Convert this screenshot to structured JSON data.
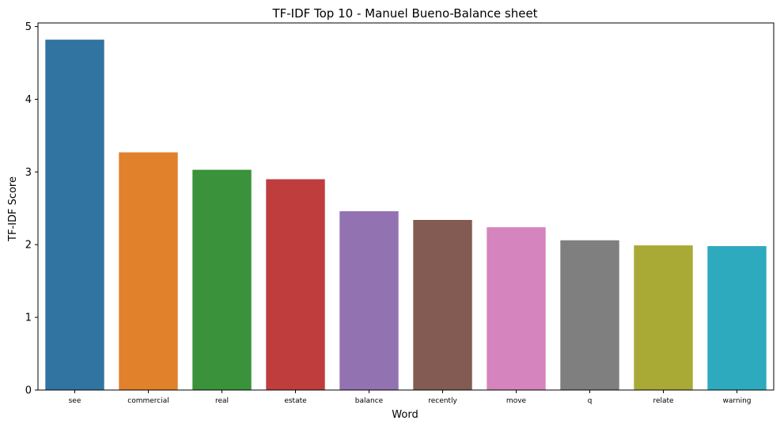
{
  "chart_data": {
    "type": "bar",
    "title": "TF-IDF Top 10 - Manuel Bueno-Balance sheet",
    "xlabel": "Word",
    "ylabel": "TF-IDF Score",
    "categories": [
      "see",
      "commercial",
      "real",
      "estate",
      "balance",
      "recently",
      "move",
      "q",
      "relate",
      "warning"
    ],
    "values": [
      4.82,
      3.27,
      3.03,
      2.9,
      2.46,
      2.34,
      2.24,
      2.06,
      1.99,
      1.98
    ],
    "colors": [
      "#3274a1",
      "#e1812c",
      "#3a923a",
      "#c03d3e",
      "#9372b2",
      "#845b53",
      "#d684bd",
      "#7f7f7f",
      "#a9aa35",
      "#2eaabf"
    ],
    "ylim": [
      0,
      5.05
    ],
    "yticks": [
      0,
      1,
      2,
      3,
      4,
      5
    ],
    "grid": false,
    "legend": "none"
  }
}
